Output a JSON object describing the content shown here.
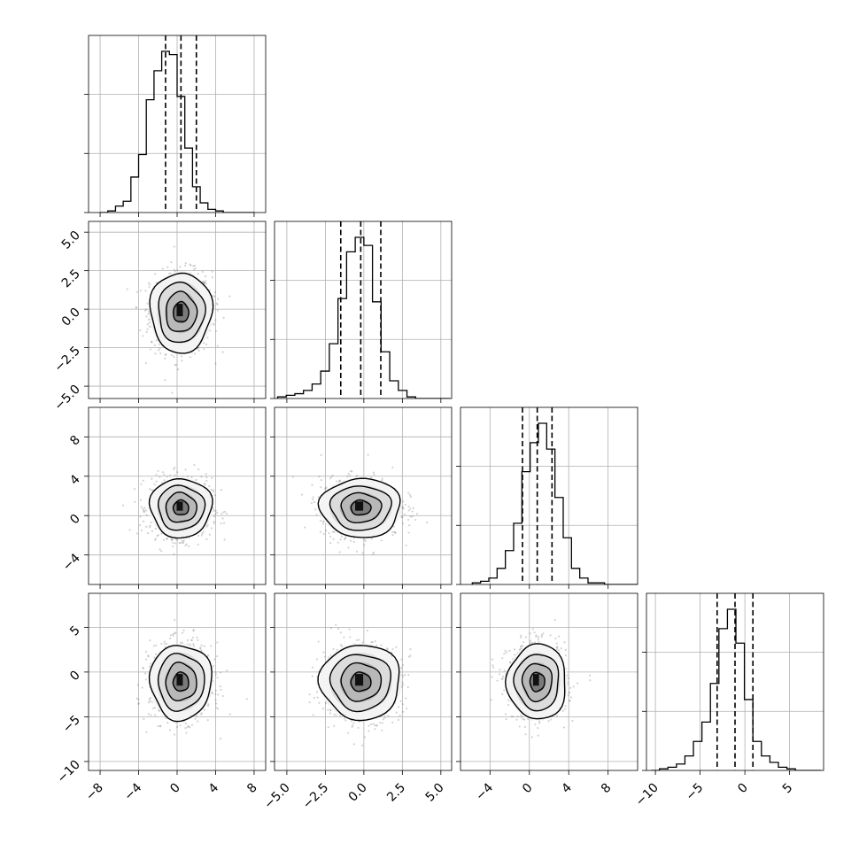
{
  "chart_data": {
    "type": "corner",
    "grid": true,
    "n_params": 4,
    "ticks": [
      {
        "values": [
          -8,
          -4,
          0,
          4,
          8
        ],
        "labels": [
          "−8",
          "−4",
          "0",
          "4",
          "8"
        ]
      },
      {
        "values": [
          -5.0,
          -2.5,
          0.0,
          2.5,
          5.0
        ],
        "labels": [
          "−5.0",
          "−2.5",
          "0.0",
          "2.5",
          "5.0"
        ]
      },
      {
        "values": [
          -4,
          0,
          4,
          8
        ],
        "labels": [
          "−4",
          "0",
          "4",
          "8"
        ]
      },
      {
        "values": [
          -10,
          -5,
          0,
          5
        ],
        "labels": [
          "−10",
          "−5",
          "0",
          "5"
        ]
      }
    ],
    "ranges": [
      [
        -9.2,
        9.2
      ],
      [
        -5.8,
        5.7
      ],
      [
        -7.0,
        11.0
      ],
      [
        -11.0,
        8.8
      ]
    ],
    "centers": [
      0.4,
      -0.2,
      0.8,
      -1.1
    ],
    "widths": [
      1.6,
      1.3,
      1.5,
      2.1
    ],
    "quantiles": [
      [
        -1.2,
        0.4,
        2.0
      ],
      [
        -1.5,
        -0.2,
        1.1
      ],
      [
        -0.7,
        0.8,
        2.3
      ],
      [
        -3.1,
        -1.1,
        0.9
      ]
    ],
    "histograms": [
      {
        "bin_start": -8.0,
        "bin_width": 0.8,
        "counts": [
          0,
          1,
          4,
          7,
          22,
          36,
          70,
          88,
          100,
          98,
          72,
          40,
          16,
          6,
          2,
          1,
          0,
          0,
          0,
          0
        ]
      },
      {
        "bin_start": -5.6,
        "bin_width": 0.56,
        "counts": [
          1,
          2,
          3,
          5,
          9,
          17,
          34,
          62,
          91,
          100,
          95,
          60,
          29,
          11,
          5,
          1,
          0,
          0,
          0,
          0
        ]
      },
      {
        "bin_start": -5.8,
        "bin_width": 0.84,
        "counts": [
          1,
          2,
          4,
          10,
          21,
          38,
          70,
          88,
          100,
          84,
          54,
          29,
          10,
          4,
          1,
          1,
          0,
          0,
          0,
          0
        ]
      },
      {
        "bin_start": -10.5,
        "bin_width": 0.95,
        "counts": [
          0,
          1,
          2,
          4,
          9,
          18,
          30,
          54,
          88,
          100,
          79,
          44,
          18,
          9,
          5,
          2,
          1,
          0,
          0,
          0
        ]
      }
    ],
    "pairs": [
      {
        "x": 0,
        "y": 1,
        "rho": 0.0
      },
      {
        "x": 0,
        "y": 2,
        "rho": 0.0
      },
      {
        "x": 1,
        "y": 2,
        "rho": 0.0
      },
      {
        "x": 0,
        "y": 3,
        "rho": 0.0
      },
      {
        "x": 1,
        "y": 3,
        "rho": 0.0
      },
      {
        "x": 2,
        "y": 3,
        "rho": 0.0
      }
    ],
    "contour_levels_sigma": [
      0.5,
      1.0,
      1.5,
      2.0
    ],
    "n_scatter_points": 900,
    "colors": {
      "line": "#000000",
      "scatter": "#808080",
      "grid": "#b0b0b0"
    }
  }
}
